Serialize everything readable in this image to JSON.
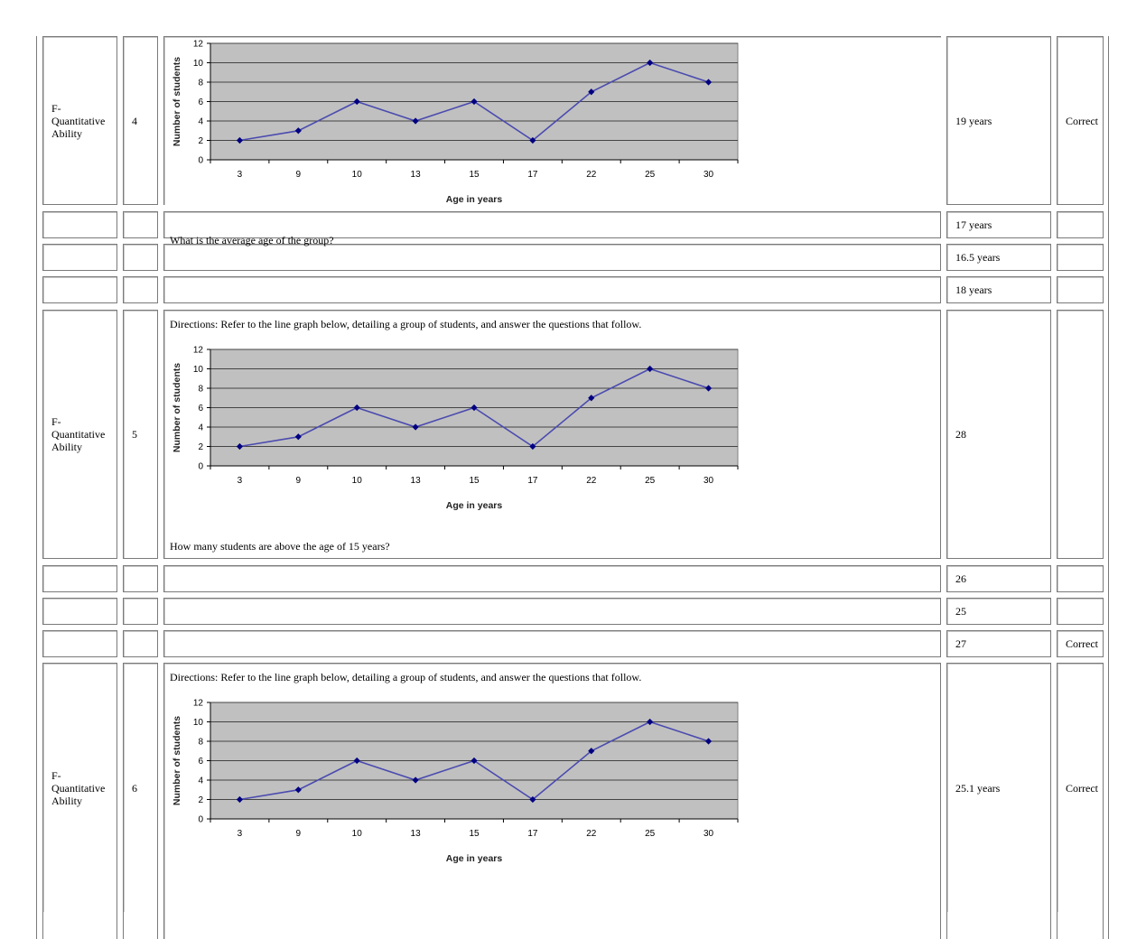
{
  "colors": {
    "plot_bg": "#c0c0c0",
    "series_line": "#4b4bb0",
    "marker": "#000080",
    "gridline": "#444444"
  },
  "questions": [
    {
      "section": "F- Quantitative Ability",
      "number": "4",
      "directions": "",
      "question": "What is the average age of the group?",
      "options": [
        {
          "text": "19 years",
          "status": "Correct"
        },
        {
          "text": "17 years",
          "status": ""
        },
        {
          "text": "16.5 years",
          "status": ""
        },
        {
          "text": "18 years",
          "status": ""
        }
      ]
    },
    {
      "section": "F- Quantitative Ability",
      "number": "5",
      "directions": "Directions: Refer to the line graph below, detailing a group of students, and answer the questions that follow.",
      "question": "How many students are above the age of 15 years?",
      "options": [
        {
          "text": "28",
          "status": ""
        },
        {
          "text": "26",
          "status": ""
        },
        {
          "text": "25",
          "status": ""
        },
        {
          "text": "27",
          "status": "Correct"
        }
      ]
    },
    {
      "section": "F- Quantitative Ability",
      "number": "6",
      "directions": "Directions: Refer to the line graph below, detailing a group of students, and answer the questions that follow.",
      "question": "",
      "options": [
        {
          "text": "25.1 years",
          "status": "Correct"
        }
      ]
    }
  ],
  "chart_data": [
    {
      "type": "line",
      "x": [
        3,
        9,
        10,
        13,
        15,
        17,
        22,
        25,
        30
      ],
      "categories": [
        "3",
        "9",
        "10",
        "13",
        "15",
        "17",
        "22",
        "25",
        "30"
      ],
      "values": [
        2,
        3,
        6,
        4,
        6,
        2,
        7,
        10,
        8
      ],
      "title": "",
      "xlabel": "Age in years",
      "ylabel": "Number of students",
      "ylim": [
        0,
        12
      ],
      "yticks": [
        0,
        2,
        4,
        6,
        8,
        10,
        12
      ],
      "grid": true,
      "legend": "none"
    },
    {
      "type": "line",
      "x": [
        3,
        9,
        10,
        13,
        15,
        17,
        22,
        25,
        30
      ],
      "categories": [
        "3",
        "9",
        "10",
        "13",
        "15",
        "17",
        "22",
        "25",
        "30"
      ],
      "values": [
        2,
        3,
        6,
        4,
        6,
        2,
        7,
        10,
        8
      ],
      "title": "",
      "xlabel": "Age in years",
      "ylabel": "Number of students",
      "ylim": [
        0,
        12
      ],
      "yticks": [
        0,
        2,
        4,
        6,
        8,
        10,
        12
      ],
      "grid": true,
      "legend": "none"
    },
    {
      "type": "line",
      "x": [
        3,
        9,
        10,
        13,
        15,
        17,
        22,
        25,
        30
      ],
      "categories": [
        "3",
        "9",
        "10",
        "13",
        "15",
        "17",
        "22",
        "25",
        "30"
      ],
      "values": [
        2,
        3,
        6,
        4,
        6,
        2,
        7,
        10,
        8
      ],
      "title": "",
      "xlabel": "Age in years",
      "ylabel": "Number of students",
      "ylim": [
        0,
        12
      ],
      "yticks": [
        0,
        2,
        4,
        6,
        8,
        10,
        12
      ],
      "grid": true,
      "legend": "none"
    }
  ]
}
